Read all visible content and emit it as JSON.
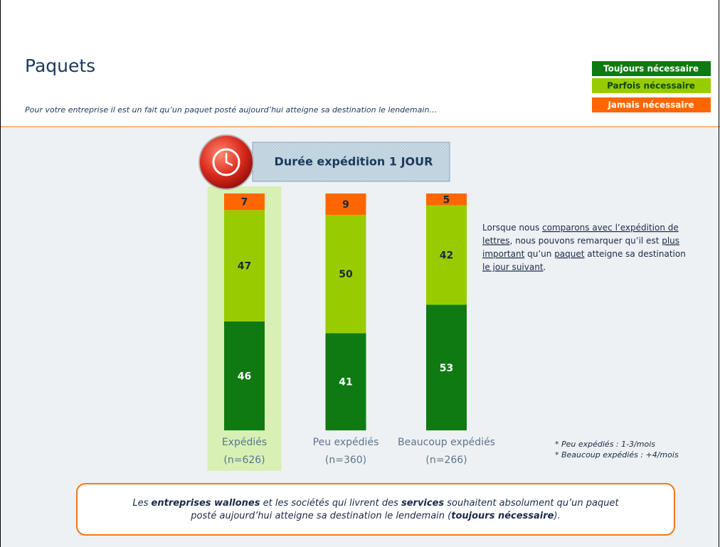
{
  "header": {
    "title": "Paquets",
    "subtitle": "Pour votre entreprise il est un fait qu’un paquet posté aujourd’hui atteigne sa destination le lendemain…"
  },
  "chart_data": {
    "type": "stacked_bar",
    "title": "Durée expédition 1 JOUR",
    "categories": [
      "Expédiés",
      "Peu expédiés",
      "Beaucoup expédiés"
    ],
    "sample_sizes": [
      "(n=626)",
      "(n=360)",
      "(n=266)"
    ],
    "highlight_index": 0,
    "series": [
      {
        "name": "Toujours nécessaire",
        "color": "#0f7a12",
        "values": [
          46,
          41,
          53
        ]
      },
      {
        "name": "Parfois nécessaire",
        "color": "#99cc00",
        "values": [
          47,
          50,
          42
        ]
      },
      {
        "name": "Jamais nécessaire",
        "color": "#ff6600",
        "values": [
          7,
          9,
          5
        ]
      }
    ]
  },
  "annotation": {
    "lines": [
      [
        {
          "text": "Lorsque nous "
        },
        {
          "text": "comparons avec l’expédition de",
          "underline": true
        }
      ],
      [
        {
          "text": "lettres",
          "underline": true
        },
        {
          "text": ", nous pouvons remarquer qu’il est "
        },
        {
          "text": "plus",
          "underline": true
        }
      ],
      [
        {
          "text": "important",
          "underline": true
        },
        {
          "text": " qu’un "
        },
        {
          "text": "paquet",
          "underline": true
        },
        {
          "text": " atteigne sa destination"
        }
      ],
      [
        {
          "text": "le jour suivant",
          "underline": true
        },
        {
          "text": "."
        }
      ]
    ]
  },
  "footnotes": [
    "* Peu expédiés : 1-3/mois",
    "* Beaucoup expédiés : +4/mois"
  ],
  "conclusion": {
    "lines": [
      [
        {
          "text": "Les "
        },
        {
          "text": "entreprises wallones",
          "bold": true
        },
        {
          "text": " et les sociétés qui livrent des "
        },
        {
          "text": "services",
          "bold": true
        },
        {
          "text": " souhaitent absolument qu’un paquet"
        }
      ],
      [
        {
          "text": "posté aujourd’hui atteigne sa destination le lendemain ("
        },
        {
          "text": "toujours nécessaire",
          "bold": true
        },
        {
          "text": ")."
        }
      ]
    ]
  }
}
